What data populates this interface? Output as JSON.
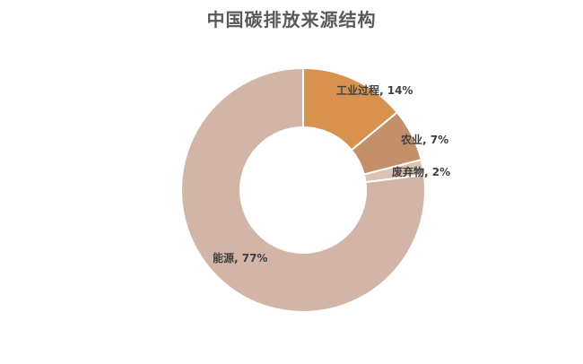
{
  "chart_data": {
    "type": "pie",
    "subtype": "donut",
    "title": "中国碳排放来源结构",
    "start_angle_deg": 0,
    "direction": "clockwise",
    "legend": "none",
    "slices": [
      {
        "label": "工业过程",
        "value": 14,
        "display": "工业过程, 14%",
        "color": "#D9914F"
      },
      {
        "label": "农业",
        "value": 7,
        "display": "农业, 7%",
        "color": "#C4906B"
      },
      {
        "label": "废弃物",
        "value": 2,
        "display": "废弃物, 2%",
        "color": "#DDC4B2"
      },
      {
        "label": "能源",
        "value": 77,
        "display": "能源, 77%",
        "color": "#D3B5A8"
      }
    ]
  }
}
